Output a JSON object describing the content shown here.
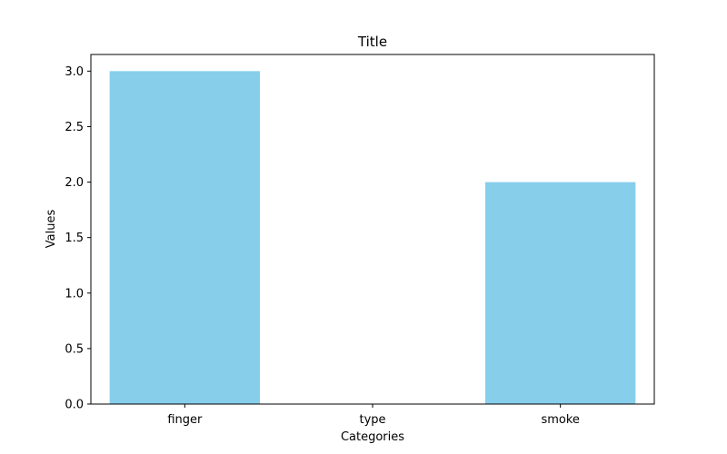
{
  "chart_data": {
    "type": "bar",
    "title": "Title",
    "xlabel": "Categories",
    "ylabel": "Values",
    "categories": [
      "finger",
      "type",
      "smoke"
    ],
    "values": [
      3,
      0,
      2
    ],
    "ylim": [
      0,
      3.15
    ],
    "yticks": [
      "0.0",
      "0.5",
      "1.0",
      "1.5",
      "2.0",
      "2.5",
      "3.0"
    ],
    "bar_color": "#87CEEB",
    "grid": false,
    "legend": "none"
  }
}
